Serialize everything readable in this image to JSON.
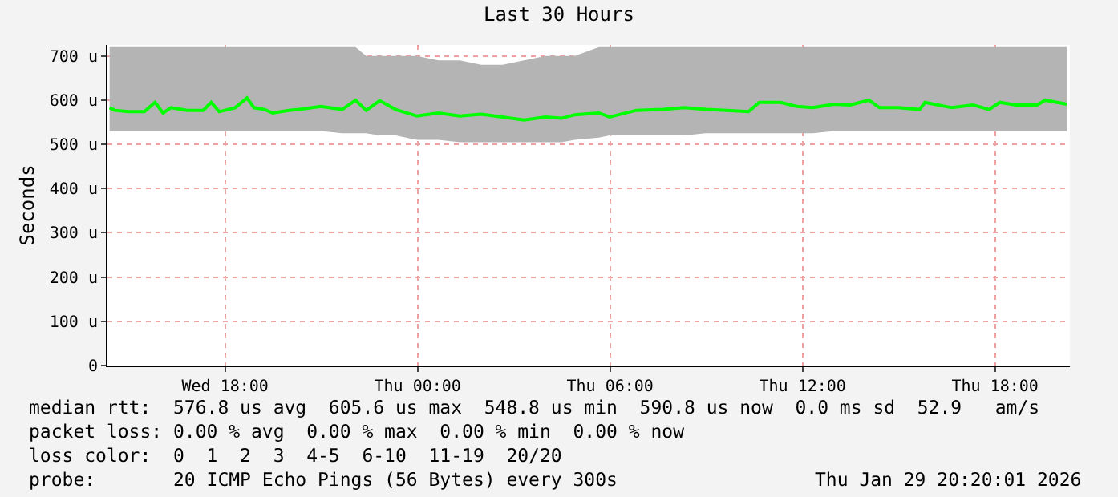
{
  "chart_data": {
    "type": "line",
    "title": "Last 30 Hours",
    "ylabel": "Seconds",
    "x": [
      "--01-28T14:24",
      "--01-28T14:34",
      "--01-28T14:59",
      "--01-28T15:29",
      "--01-28T15:49",
      "--01-28T16:04",
      "--01-28T16:19",
      "--01-28T16:49",
      "--01-28T17:19",
      "--01-28T17:34",
      "--01-28T17:49",
      "--01-28T18:19",
      "--01-28T18:41",
      "--01-28T18:54",
      "--01-28T19:14",
      "--01-28T19:29",
      "--01-28T19:59",
      "--01-28T20:19",
      "--01-28T20:59",
      "--01-28T21:39",
      "--01-28T22:04",
      "--01-28T22:24",
      "--01-28T22:49",
      "--01-28T23:19",
      "--01-28T23:59",
      "--01-29T00:39",
      "--01-29T01:19",
      "--01-29T01:59",
      "--01-29T02:39",
      "--01-29T03:19",
      "--01-29T03:59",
      "--01-29T04:29",
      "--01-29T04:54",
      "--01-29T05:39",
      "--01-29T05:59",
      "--01-29T06:49",
      "--01-29T07:39",
      "--01-29T08:19",
      "--01-29T08:59",
      "--01-29T09:39",
      "--01-29T10:19",
      "--01-29T10:39",
      "--01-29T11:19",
      "--01-29T11:49",
      "--01-29T12:19",
      "--01-29T12:59",
      "--01-29T13:29",
      "--01-29T14:04",
      "--01-29T14:24",
      "--01-29T14:59",
      "--01-29T15:39",
      "--01-29T15:49",
      "--01-29T16:39",
      "--01-29T17:19",
      "--01-29T17:49",
      "--01-29T18:09",
      "--01-29T18:39",
      "--01-29T19:19",
      "--01-29T19:34",
      "--01-29T20:14"
    ],
    "series": [
      {
        "color": "#00ff00",
        "values": [
          583,
          577,
          574,
          574,
          595,
          571,
          583,
          577,
          577,
          595,
          574,
          583,
          605,
          583,
          579,
          571,
          577,
          579,
          586,
          579,
          600,
          577,
          599,
          579,
          564,
          571,
          564,
          568,
          562,
          555,
          562,
          559,
          567,
          571,
          562,
          577,
          579,
          583,
          579,
          577,
          574,
          595,
          595,
          586,
          583,
          591,
          589,
          600,
          583,
          583,
          579,
          595,
          583,
          589,
          579,
          595,
          589,
          589,
          600,
          591
        ],
        "lower": [
          530,
          530,
          530,
          530,
          530,
          530,
          530,
          530,
          530,
          530,
          530,
          530,
          530,
          530,
          530,
          530,
          530,
          530,
          530,
          525,
          525,
          525,
          520,
          520,
          510,
          510,
          505,
          505,
          505,
          505,
          505,
          505,
          510,
          515,
          520,
          520,
          520,
          520,
          525,
          525,
          525,
          525,
          525,
          525,
          525,
          530,
          530,
          530,
          530,
          530,
          530,
          530,
          530,
          530,
          530,
          530,
          530,
          530,
          530,
          530
        ],
        "upper": [
          720,
          720,
          720,
          720,
          720,
          720,
          720,
          720,
          720,
          720,
          720,
          720,
          720,
          720,
          720,
          720,
          720,
          720,
          720,
          720,
          720,
          700,
          700,
          700,
          700,
          690,
          690,
          680,
          680,
          690,
          700,
          700,
          700,
          720,
          720,
          720,
          720,
          720,
          720,
          720,
          720,
          720,
          720,
          720,
          720,
          720,
          720,
          720,
          720,
          720,
          720,
          720,
          720,
          720,
          720,
          720,
          720,
          720,
          720,
          720
        ]
      }
    ],
    "xlim": [
      "--01-28T14:20",
      "--01-29T20:20"
    ],
    "xticks": [
      {
        "value": "--01-28T18:00",
        "label": "Wed 18:00"
      },
      {
        "value": "--01-29T00:00",
        "label": "Thu 00:00"
      },
      {
        "value": "--01-29T06:00",
        "label": "Thu 06:00"
      },
      {
        "value": "--01-29T12:00",
        "label": "Thu 12:00"
      },
      {
        "value": "--01-29T18:00",
        "label": "Thu 18:00"
      }
    ],
    "ylim": [
      0,
      725
    ],
    "yticks": [
      0,
      {
        "value": 100,
        "label": "100 u"
      },
      {
        "value": 200,
        "label": "200 u"
      },
      {
        "value": 300,
        "label": "300 u"
      },
      {
        "value": 400,
        "label": "400 u"
      },
      {
        "value": 500,
        "label": "500 u"
      },
      {
        "value": 600,
        "label": "600 u"
      },
      {
        "value": 700,
        "label": "700 u"
      }
    ],
    "grid": true,
    "marker": "none",
    "line_style": "solid",
    "annotations": [
      "median rtt:  576.8 us avg  605.6 us max  548.8 us min  590.8 us now  0.0 ms sd  52.9   am/s",
      "packet loss: 0.00 % avg  0.00 % max  0.00 % min  0.00 % now",
      "loss color:  0  1  2  3  4-5  6-10  11-19  20/20",
      "probe:       20 ICMP Echo Pings (56 Bytes) every 300s",
      "Thu Jan 29 20:20:01 2026"
    ]
  }
}
